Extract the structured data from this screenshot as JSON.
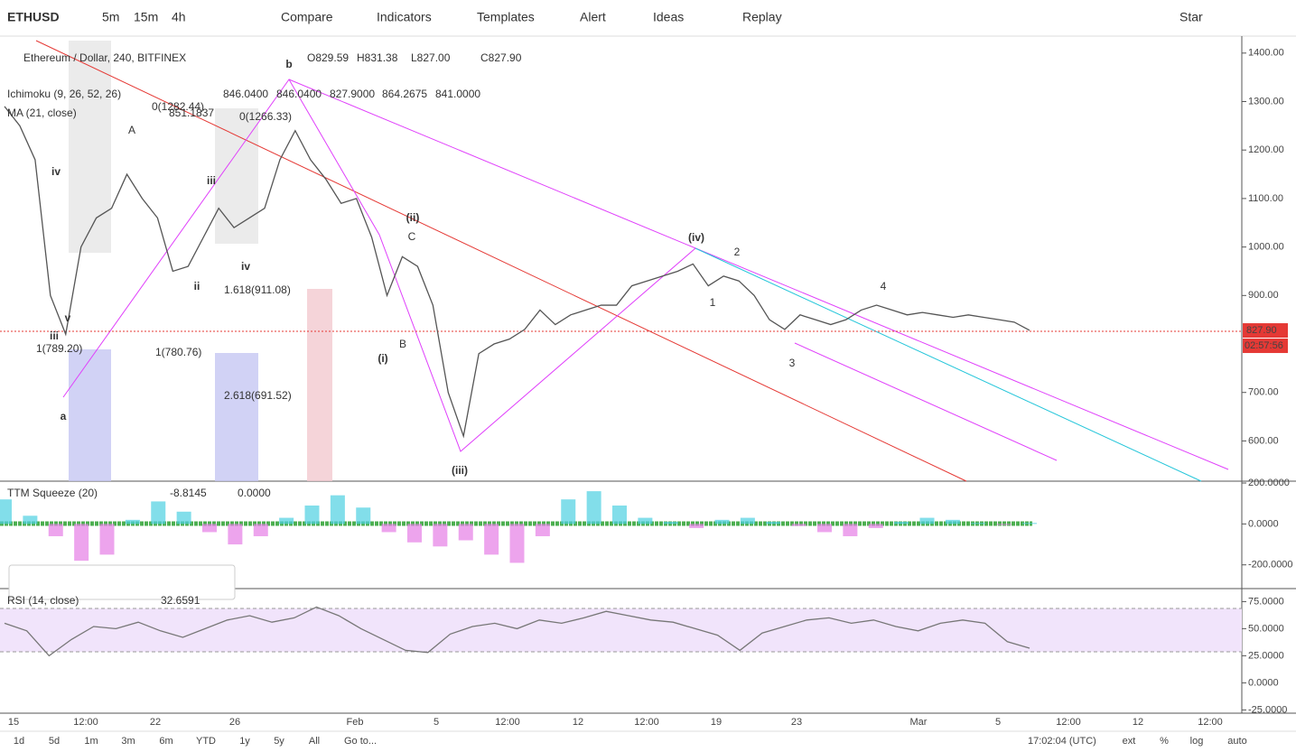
{
  "toolbar": {
    "symbol": "ETHUSD",
    "intervals": [
      "5m",
      "15m",
      "4h"
    ],
    "buttons": [
      "Compare",
      "Indicators",
      "Templates",
      "Alert",
      "Ideas",
      "Replay"
    ],
    "star": "Star"
  },
  "chart_data": [
    {
      "type": "line",
      "title": "Ethereum / Dollar, 240, BITFINEX",
      "ohlc": [
        "O829.59",
        "H831.38",
        "L827.00",
        "C827.90"
      ],
      "color": "#555555",
      "indicators": [
        {
          "name": "Ichimoku (9, 26, 52, 26)",
          "values": [
            "846.0400",
            "846.0400",
            "827.9000",
            "864.2675",
            "841.0000"
          ]
        },
        {
          "name": "MA (21, close)",
          "values": [
            "851.1837"
          ]
        }
      ],
      "ylim": [
        517,
        1435
      ],
      "yticks": [
        {
          "value": 600,
          "label": "600.00"
        },
        {
          "value": 700,
          "label": "700.00"
        },
        {
          "value": 900,
          "label": "900.00"
        },
        {
          "value": 1000,
          "label": "1000.00"
        },
        {
          "value": 1100,
          "label": "1100.00"
        },
        {
          "value": 1200,
          "label": "1200.00"
        },
        {
          "value": 1300,
          "label": "1300.00"
        },
        {
          "value": 1400,
          "label": "1400.00"
        }
      ],
      "last_price": {
        "value": 827.9,
        "label": "827.90"
      },
      "countdown": "02:57:56",
      "values": [
        1290,
        1250,
        1180,
        900,
        820,
        1000,
        1060,
        1080,
        1150,
        1100,
        1060,
        950,
        960,
        1020,
        1080,
        1040,
        1060,
        1080,
        1180,
        1240,
        1180,
        1140,
        1090,
        1100,
        1020,
        900,
        980,
        960,
        880,
        700,
        610,
        780,
        800,
        810,
        830,
        870,
        840,
        860,
        870,
        880,
        880,
        920,
        930,
        940,
        950,
        965,
        920,
        940,
        930,
        900,
        850,
        830,
        860,
        850,
        840,
        850,
        870,
        880,
        870,
        860,
        865,
        860,
        855,
        860,
        855,
        850,
        845,
        828
      ],
      "annotations": [
        "a",
        "b",
        "iii",
        "iv",
        "v",
        "iii",
        "iv",
        "ii",
        "(iv)",
        "(iii)",
        "(ii)",
        "(i)",
        "1",
        "2",
        "3",
        "4",
        "A",
        "B",
        "C",
        "1.618(911.08)",
        "2.618(691.52)",
        "1(780.76)",
        "1(789.20)",
        "0(1266.33)",
        "0(1282.44)"
      ]
    },
    {
      "type": "bar",
      "title": "TTM Squeeze (20)",
      "legend_values": [
        "-8.8145",
        "0.0000"
      ],
      "ylim": [
        -316,
        209
      ],
      "yticks": [
        {
          "value": -200,
          "label": "-200.0000"
        },
        {
          "value": 0,
          "label": "0.0000"
        },
        {
          "value": 200,
          "label": "200.0000"
        }
      ],
      "values": [
        120,
        40,
        -60,
        -180,
        -150,
        20,
        110,
        60,
        -40,
        -100,
        -60,
        30,
        90,
        140,
        80,
        -40,
        -90,
        -110,
        -80,
        -150,
        -190,
        -60,
        120,
        160,
        90,
        30,
        10,
        -20,
        20,
        30,
        10,
        -10,
        -40,
        -60,
        -20,
        10,
        30,
        20,
        5,
        -5,
        5
      ]
    },
    {
      "type": "line",
      "title": "RSI (14, close)",
      "legend_values": [
        "32.6591"
      ],
      "color": "#777777",
      "ylim": [
        -28,
        87
      ],
      "yticks": [
        {
          "value": -25,
          "label": "-25.0000"
        },
        {
          "value": 0,
          "label": "0.0000"
        },
        {
          "value": 25,
          "label": "25.0000"
        },
        {
          "value": 50,
          "label": "50.0000"
        },
        {
          "value": 75,
          "label": "75.0000"
        }
      ],
      "values": [
        55,
        48,
        25,
        40,
        52,
        50,
        56,
        48,
        42,
        50,
        58,
        62,
        56,
        60,
        70,
        62,
        50,
        40,
        30,
        28,
        45,
        52,
        55,
        50,
        58,
        55,
        60,
        66,
        62,
        58,
        56,
        50,
        44,
        30,
        46,
        52,
        58,
        60,
        55,
        58,
        52,
        48,
        55,
        58,
        55,
        38,
        32
      ]
    }
  ],
  "time_axis": [
    "15",
    "12:00",
    "22",
    "26",
    "Feb",
    "5",
    "12:00",
    "12",
    "12:00",
    "19",
    "23",
    "Mar",
    "5",
    "12:00",
    "12",
    "12:00"
  ],
  "bottom_bar": {
    "ranges": [
      "1d",
      "5d",
      "1m",
      "3m",
      "6m",
      "YTD",
      "1y",
      "5y",
      "All"
    ],
    "goto": "Go to...",
    "clock": "17:02:04 (UTC)",
    "options": [
      "ext",
      "%",
      "log",
      "auto"
    ]
  }
}
